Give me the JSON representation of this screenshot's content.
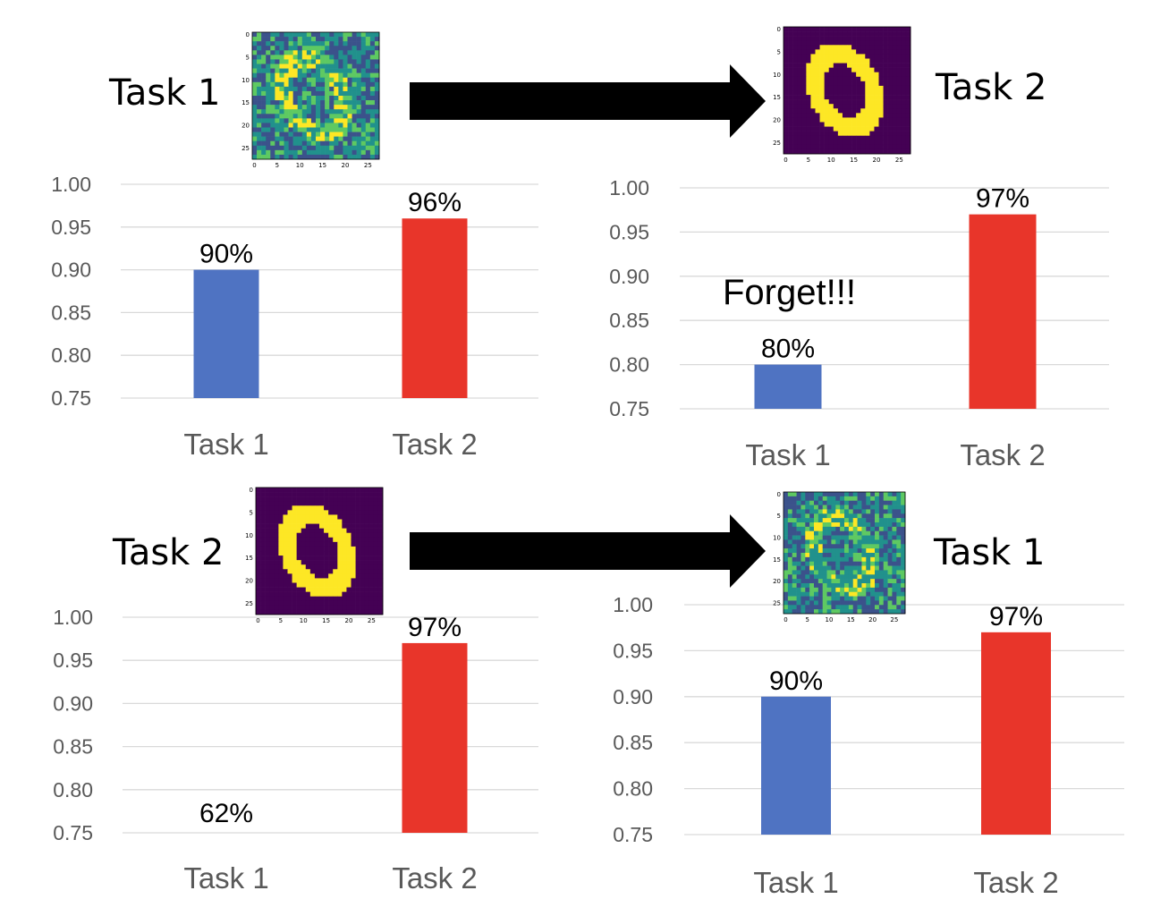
{
  "headings": {
    "top_left": "Task 1",
    "top_right": "Task 2",
    "bottom_left": "Task 2",
    "bottom_right": "Task 1"
  },
  "images": {
    "noisy_digit": {
      "ticks": [
        "0",
        "5",
        "10",
        "15",
        "20",
        "25"
      ],
      "colors": [
        "#3b528b",
        "#21918c",
        "#5ec962",
        "#fde725"
      ]
    },
    "clean_digit": {
      "ticks": [
        "0",
        "5",
        "10",
        "15",
        "20",
        "25"
      ],
      "colors": [
        "#440154",
        "#fde725"
      ]
    }
  },
  "colors": {
    "task1_bar": "#4f73c2",
    "task2_bar": "#e8352a",
    "grid": "#d9d9d9"
  },
  "chart_data": [
    {
      "type": "bar",
      "categories": [
        "Task 1",
        "Task 2"
      ],
      "values": [
        0.9,
        0.96
      ],
      "data_labels": [
        "90%",
        "96%"
      ],
      "yticks": [
        "1.00",
        "0.95",
        "0.90",
        "0.85",
        "0.80",
        "0.75"
      ],
      "ylim": [
        0.75,
        1.0
      ],
      "annotation": ""
    },
    {
      "type": "bar",
      "categories": [
        "Task 1",
        "Task 2"
      ],
      "values": [
        0.8,
        0.97
      ],
      "data_labels": [
        "80%",
        "97%"
      ],
      "yticks": [
        "1.00",
        "0.95",
        "0.90",
        "0.85",
        "0.80",
        "0.75"
      ],
      "ylim": [
        0.75,
        1.0
      ],
      "annotation": "Forget!!!"
    },
    {
      "type": "bar",
      "categories": [
        "Task 1",
        "Task 2"
      ],
      "values": [
        0.62,
        0.97
      ],
      "data_labels": [
        "62%",
        "97%"
      ],
      "yticks": [
        "1.00",
        "0.95",
        "0.90",
        "0.85",
        "0.80",
        "0.75"
      ],
      "ylim": [
        0.75,
        1.0
      ],
      "annotation": ""
    },
    {
      "type": "bar",
      "categories": [
        "Task 1",
        "Task 2"
      ],
      "values": [
        0.9,
        0.97
      ],
      "data_labels": [
        "90%",
        "97%"
      ],
      "yticks": [
        "1.00",
        "0.95",
        "0.90",
        "0.85",
        "0.80",
        "0.75"
      ],
      "ylim": [
        0.75,
        1.0
      ],
      "annotation": ""
    }
  ]
}
